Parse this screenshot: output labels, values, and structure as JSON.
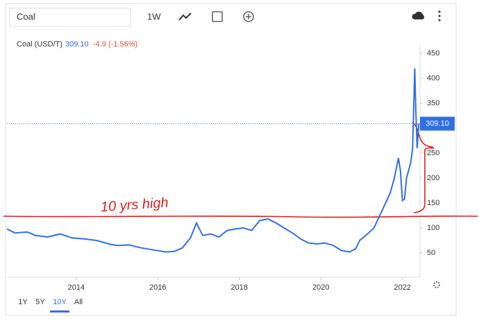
{
  "toolbar": {
    "search": "Coal",
    "interval": "1W"
  },
  "header": {
    "name": "Coal (USD/T)",
    "price": "309.10",
    "change": "-4.9 (-1.56%)"
  },
  "annotation": "10 yrs high",
  "ranges": [
    "1Y",
    "5Y",
    "10Y",
    "All"
  ],
  "chart_data": {
    "type": "line",
    "x": [
      2012.3,
      2012.5,
      2012.8,
      2013.0,
      2013.3,
      2013.6,
      2013.9,
      2014.2,
      2014.5,
      2014.8,
      2015.0,
      2015.3,
      2015.6,
      2015.9,
      2016.2,
      2016.4,
      2016.6,
      2016.8,
      2016.95,
      2017.1,
      2017.3,
      2017.5,
      2017.7,
      2017.9,
      2018.1,
      2018.3,
      2018.5,
      2018.7,
      2018.9,
      2019.1,
      2019.3,
      2019.5,
      2019.7,
      2019.9,
      2020.1,
      2020.3,
      2020.5,
      2020.7,
      2020.85,
      2020.95,
      2021.1,
      2021.3,
      2021.5,
      2021.7,
      2021.8,
      2021.9,
      2021.95,
      2022.0,
      2022.05,
      2022.1,
      2022.2,
      2022.25,
      2022.3,
      2022.33,
      2022.36,
      2022.4
    ],
    "series": [
      {
        "name": "Coal (USD/T)",
        "color": "#2f6fe4",
        "values": [
          98,
          90,
          92,
          85,
          82,
          88,
          80,
          78,
          75,
          68,
          65,
          66,
          60,
          56,
          52,
          53,
          60,
          80,
          110,
          85,
          88,
          82,
          95,
          98,
          100,
          95,
          115,
          118,
          110,
          100,
          90,
          78,
          70,
          68,
          70,
          65,
          55,
          52,
          58,
          75,
          85,
          100,
          135,
          170,
          200,
          240,
          215,
          155,
          158,
          200,
          230,
          260,
          420,
          330,
          260,
          309.1
        ]
      }
    ],
    "xlim": [
      2012.3,
      2022.43
    ],
    "ylim": [
      0,
      470
    ],
    "xticks": [
      2014,
      2016,
      2018,
      2020,
      2022
    ],
    "yticks": [
      50,
      100,
      150,
      200,
      250,
      300,
      350,
      400,
      450
    ]
  }
}
